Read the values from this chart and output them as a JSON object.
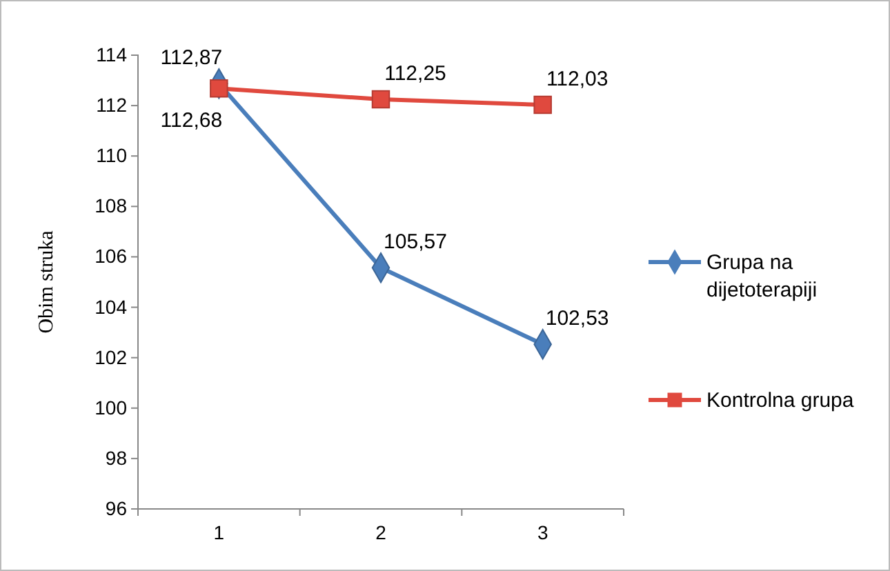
{
  "chart_data": {
    "type": "line",
    "ylabel": "Obim struka",
    "categories": [
      "1",
      "2",
      "3"
    ],
    "ylim": [
      96,
      114
    ],
    "yticks": [
      96,
      98,
      100,
      102,
      104,
      106,
      108,
      110,
      112,
      114
    ],
    "grid": false,
    "legend": "right",
    "series": [
      {
        "name": "Grupa na dijetoterapiji",
        "color": "#4a7ebb",
        "marker": "diamond",
        "values": [
          112.87,
          105.57,
          102.53
        ],
        "value_labels": [
          "112,87",
          "105,57",
          "102,53"
        ]
      },
      {
        "name": "Kontrolna grupa",
        "color": "#e0493e",
        "marker": "square",
        "values": [
          112.68,
          112.25,
          112.03
        ],
        "value_labels": [
          "112,68",
          "112,25",
          "112,03"
        ]
      }
    ]
  }
}
